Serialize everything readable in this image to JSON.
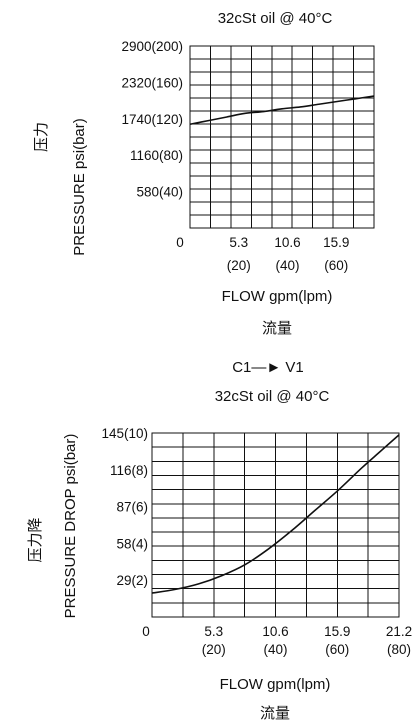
{
  "chart_data": [
    {
      "type": "line",
      "title": "32cSt oil @ 40°C",
      "ylabel_cn": "压力",
      "ylabel": "PRESSURE  psi(bar)",
      "xlabel": "FLOW gpm(lpm)",
      "xlabel_cn": "流量",
      "xlim": [
        0,
        20
      ],
      "ylim": [
        0,
        200
      ],
      "y_ticks": [
        {
          "value": 40,
          "label": "580(40)"
        },
        {
          "value": 80,
          "label": "1160(80)"
        },
        {
          "value": 120,
          "label": "1740(120)"
        },
        {
          "value": 160,
          "label": "2320(160)"
        },
        {
          "value": 200,
          "label": "2900(200)"
        }
      ],
      "x_ticks": [
        {
          "value": 0,
          "top": "0",
          "bottom": ""
        },
        {
          "value": 5.3,
          "top": "5.3",
          "bottom": "(20)"
        },
        {
          "value": 10.6,
          "top": "10.6",
          "bottom": "(40)"
        },
        {
          "value": 15.9,
          "top": "15.9",
          "bottom": "(60)"
        }
      ],
      "grid": true,
      "series": [
        {
          "x": [
            0,
            2,
            4,
            6,
            8,
            10,
            12,
            14,
            16,
            18,
            20
          ],
          "y": [
            114,
            118,
            122,
            126,
            128,
            131,
            133,
            136,
            139,
            142,
            145
          ]
        }
      ]
    },
    {
      "type": "line",
      "header": "C1—► V1",
      "title": "32cSt oil @ 40°C",
      "ylabel_cn": "压力降",
      "ylabel": "PRESSURE DROP psi(bar)",
      "xlabel": "FLOW  gpm(lpm)",
      "xlabel_cn": "流量",
      "xlim": [
        0,
        21.2
      ],
      "ylim": [
        0,
        10
      ],
      "y_ticks": [
        {
          "value": 2,
          "label": "29(2)"
        },
        {
          "value": 4,
          "label": "58(4)"
        },
        {
          "value": 6,
          "label": "87(6)"
        },
        {
          "value": 8,
          "label": "116(8)"
        },
        {
          "value": 10,
          "label": "145(10)"
        }
      ],
      "x_ticks": [
        {
          "value": 0,
          "top": "0",
          "bottom": ""
        },
        {
          "value": 5.3,
          "top": "5.3",
          "bottom": "(20)"
        },
        {
          "value": 10.6,
          "top": "10.6",
          "bottom": "(40)"
        },
        {
          "value": 15.9,
          "top": "15.9",
          "bottom": "(60)"
        },
        {
          "value": 21.2,
          "top": "21.2",
          "bottom": "(80)"
        }
      ],
      "grid": true,
      "series": [
        {
          "x": [
            0,
            2,
            4,
            6,
            8,
            10,
            12,
            14,
            16,
            18,
            19.6,
            21.2
          ],
          "y": [
            1.3,
            1.5,
            1.8,
            2.25,
            2.85,
            3.7,
            4.7,
            5.8,
            6.9,
            8.1,
            9.0,
            9.9
          ]
        }
      ]
    }
  ]
}
